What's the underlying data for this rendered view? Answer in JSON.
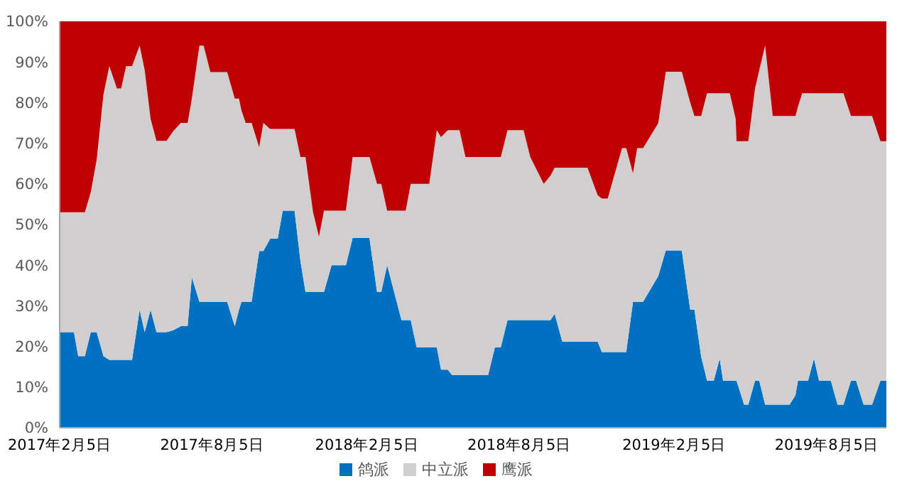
{
  "chart_data": {
    "type": "area",
    "stacked": true,
    "legend": "bottom",
    "grid": false,
    "x": [
      "2017-02-05",
      "2017-02-22",
      "2017-02-27",
      "2017-03-07",
      "2017-03-14",
      "2017-03-21",
      "2017-03-29",
      "2017-04-05",
      "2017-04-14",
      "2017-04-19",
      "2017-04-25",
      "2017-05-02",
      "2017-05-11",
      "2017-05-17",
      "2017-05-24",
      "2017-05-31",
      "2017-06-12",
      "2017-06-20",
      "2017-06-29",
      "2017-07-07",
      "2017-07-12",
      "2017-07-21",
      "2017-07-26",
      "2017-08-03",
      "2017-08-23",
      "2017-09-01",
      "2017-09-06",
      "2017-09-09",
      "2017-09-14",
      "2017-09-21",
      "2017-09-30",
      "2017-10-05",
      "2017-10-13",
      "2017-10-22",
      "2017-10-28",
      "2017-11-07",
      "2017-11-11",
      "2017-11-18",
      "2017-11-24",
      "2017-12-03",
      "2017-12-10",
      "2017-12-16",
      "2017-12-25",
      "2018-01-11",
      "2018-01-19",
      "2018-02-08",
      "2018-02-17",
      "2018-02-22",
      "2018-03-01",
      "2018-03-18",
      "2018-03-23",
      "2018-03-29",
      "2018-04-05",
      "2018-04-20",
      "2018-04-29",
      "2018-05-04",
      "2018-05-12",
      "2018-05-17",
      "2018-05-26",
      "2018-06-02",
      "2018-06-29",
      "2018-07-07",
      "2018-07-14",
      "2018-07-22",
      "2018-08-10",
      "2018-08-18",
      "2018-09-03",
      "2018-09-11",
      "2018-09-16",
      "2018-09-25",
      "2018-10-25",
      "2018-11-06",
      "2018-11-11",
      "2018-11-18",
      "2018-12-05",
      "2018-12-10",
      "2018-12-18",
      "2018-12-23",
      "2018-12-30",
      "2019-01-17",
      "2019-01-26",
      "2019-02-14",
      "2019-02-24",
      "2019-03-01",
      "2019-03-09",
      "2019-03-16",
      "2019-03-24",
      "2019-03-31",
      "2019-04-04",
      "2019-04-12",
      "2019-04-19",
      "2019-04-20",
      "2019-04-29",
      "2019-05-04",
      "2019-05-12",
      "2019-05-17",
      "2019-05-24",
      "2019-06-02",
      "2019-06-22",
      "2019-06-29",
      "2019-07-02",
      "2019-07-07",
      "2019-07-14",
      "2019-07-21",
      "2019-07-27",
      "2019-08-10",
      "2019-08-18",
      "2019-08-25",
      "2019-09-03",
      "2019-09-09",
      "2019-09-18",
      "2019-09-28",
      "2019-10-08",
      "2019-10-15"
    ],
    "series": [
      {
        "name": "鸽派",
        "color": "#0070c0",
        "values": [
          23.5,
          23.5,
          17.6,
          17.6,
          23.5,
          23.5,
          17.6,
          16.7,
          16.7,
          16.7,
          16.7,
          16.7,
          29,
          23.5,
          29,
          23.5,
          23.5,
          24,
          25,
          25,
          37,
          31,
          31,
          31,
          31,
          25,
          29,
          31,
          31,
          31,
          43.5,
          43.5,
          46.5,
          46.5,
          53.4,
          53.4,
          53.4,
          41,
          33.4,
          33.4,
          33.4,
          33.4,
          40,
          40,
          46.7,
          46.7,
          33.4,
          33.4,
          40,
          26.5,
          26.5,
          26.5,
          19.8,
          19.8,
          19.8,
          14.3,
          14.3,
          13,
          13,
          13,
          13,
          19.8,
          19.8,
          26.5,
          26.5,
          26.5,
          26.5,
          26.5,
          28,
          21.2,
          21.2,
          21.2,
          18.6,
          18.6,
          18.6,
          18.6,
          31,
          31,
          31,
          37.3,
          43.6,
          43.6,
          29,
          29,
          17.5,
          11.6,
          11.6,
          17,
          11.6,
          11.6,
          11.6,
          11.6,
          5.7,
          5.7,
          11.6,
          11.6,
          5.7,
          5.7,
          5.7,
          8,
          11.6,
          11.6,
          11.6,
          17,
          11.6,
          11.6,
          5.7,
          5.7,
          11.6,
          11.6,
          5.7,
          5.7,
          11.6,
          11.6
        ]
      },
      {
        "name": "中立派",
        "color": "#d0cece",
        "values": [
          29.5,
          29.5,
          35.4,
          35.4,
          34.5,
          42.5,
          64.4,
          72.3,
          66.8,
          66.8,
          72.3,
          72.3,
          65,
          64.5,
          47,
          47.1,
          47.1,
          49,
          50,
          50,
          44,
          63,
          63,
          56.5,
          56.5,
          56,
          52,
          47,
          44,
          44,
          25.5,
          31.5,
          27,
          27,
          20.1,
          20.1,
          20.1,
          25.6,
          33.2,
          19.6,
          13.6,
          20,
          13.4,
          13.4,
          19.9,
          19.9,
          26.6,
          26.6,
          13.4,
          26.9,
          26.9,
          33.5,
          40.2,
          40.2,
          53.4,
          57.2,
          58.9,
          60.2,
          60.2,
          53.6,
          53.6,
          46.8,
          46.8,
          46.7,
          46.7,
          40.1,
          33.5,
          35.5,
          36,
          42.8,
          42.8,
          36,
          37.8,
          37.8,
          50.2,
          50.2,
          31.6,
          37.8,
          37.8,
          37.6,
          44,
          44,
          51,
          47.7,
          59.2,
          70.7,
          70.7,
          65.3,
          70.7,
          70.7,
          64.4,
          58.9,
          64.8,
          64.8,
          71.9,
          76.4,
          88.3,
          71,
          71,
          68.7,
          67.4,
          70.7,
          70.7,
          65.3,
          70.7,
          70.7,
          76.6,
          76.6,
          65.1,
          65.1,
          71,
          71,
          58.9,
          58.9
        ]
      },
      {
        "name": "鹰派",
        "color": "#c00000",
        "values": [
          47,
          47,
          47,
          47,
          42,
          34,
          18,
          11,
          16.5,
          16.5,
          11,
          11,
          6,
          12,
          24,
          29.4,
          29.4,
          27,
          25,
          25,
          19,
          6,
          6,
          12.5,
          12.5,
          19,
          19,
          22,
          25,
          25,
          31,
          25,
          26.5,
          26.5,
          26.5,
          26.5,
          26.5,
          33.4,
          33.4,
          47,
          53,
          46.6,
          46.6,
          46.6,
          33.4,
          33.4,
          40,
          40,
          46.6,
          46.6,
          46.6,
          40,
          40,
          40,
          26.8,
          28.5,
          26.8,
          26.8,
          26.8,
          33.4,
          33.4,
          33.4,
          33.4,
          26.8,
          26.8,
          33.4,
          40,
          38,
          36,
          36,
          36,
          42.8,
          43.6,
          43.6,
          31.2,
          31.2,
          37.4,
          31.2,
          31.2,
          25.1,
          12.4,
          12.4,
          20,
          23.3,
          23.3,
          17.7,
          17.7,
          17.7,
          17.7,
          17.7,
          24,
          29.5,
          29.5,
          29.5,
          16.5,
          12,
          6,
          23.3,
          23.3,
          23.3,
          21,
          17.7,
          17.7,
          17.7,
          17.7,
          17.7,
          17.7,
          17.7,
          23.3,
          23.3,
          23.3,
          23.3,
          29.5,
          29.5
        ]
      }
    ],
    "xlim": [
      "2017-02-05",
      "2019-10-15"
    ],
    "xticks": [
      {
        "value": "2017-02-05",
        "label": "2017年2月5日"
      },
      {
        "value": "2017-08-05",
        "label": "2017年8月5日"
      },
      {
        "value": "2018-02-05",
        "label": "2018年2月5日"
      },
      {
        "value": "2018-08-05",
        "label": "2018年8月5日"
      },
      {
        "value": "2019-02-05",
        "label": "2019年2月5日"
      },
      {
        "value": "2019-08-05",
        "label": "2019年8月5日"
      }
    ],
    "ylim": [
      0,
      100
    ],
    "yticks": [
      {
        "value": 0,
        "label": "0%"
      },
      {
        "value": 10,
        "label": "10%"
      },
      {
        "value": 20,
        "label": "20%"
      },
      {
        "value": 30,
        "label": "30%"
      },
      {
        "value": 40,
        "label": "40%"
      },
      {
        "value": 50,
        "label": "50%"
      },
      {
        "value": 60,
        "label": "60%"
      },
      {
        "value": 70,
        "label": "70%"
      },
      {
        "value": 80,
        "label": "80%"
      },
      {
        "value": 90,
        "label": "90%"
      },
      {
        "value": 100,
        "label": "100%"
      }
    ]
  }
}
